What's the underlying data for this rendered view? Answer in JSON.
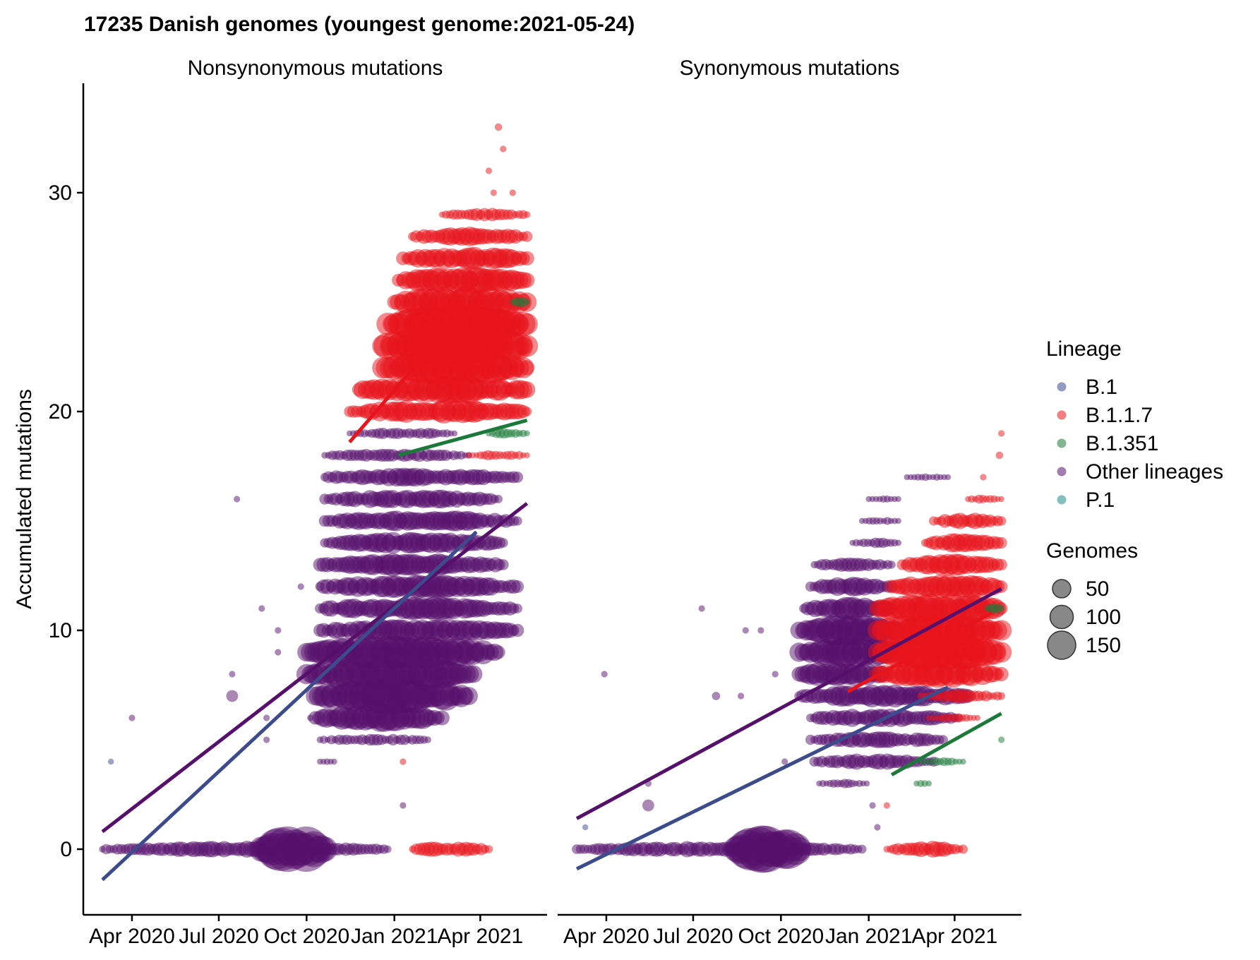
{
  "chart_data": {
    "type": "scatter",
    "title": "17235 Danish genomes (youngest genome:2021-05-24)",
    "ylabel": "Accumulated mutations",
    "ylim": [
      -3,
      35
    ],
    "y_ticks": [
      0,
      10,
      20,
      30
    ],
    "x_ticks": [
      "Apr 2020",
      "Jul 2020",
      "Oct 2020",
      "Jan 2021",
      "Apr 2021"
    ],
    "x_tick_dates": [
      "2020-04-01",
      "2020-07-01",
      "2020-10-01",
      "2021-01-01",
      "2021-04-01"
    ],
    "xlim": [
      "2020-02-10",
      "2021-06-10"
    ],
    "grid": false,
    "legend_position": "right",
    "lineage_legend": {
      "title": "Lineage",
      "items": [
        {
          "name": "B.1",
          "color": "#3b4b8c"
        },
        {
          "name": "B.1.1.7",
          "color": "#e8141b"
        },
        {
          "name": "B.1.351",
          "color": "#1b7a3a"
        },
        {
          "name": "Other lineages",
          "color": "#56106b"
        },
        {
          "name": "P.1",
          "color": "#1f8a8a"
        }
      ]
    },
    "size_legend": {
      "title": "Genomes",
      "items": [
        {
          "label": "50",
          "genomes": 50
        },
        {
          "label": "100",
          "genomes": 100
        },
        {
          "label": "150",
          "genomes": 150
        }
      ]
    },
    "panels": [
      {
        "name": "Nonsynonymous mutations",
        "trend_lines": [
          {
            "series": "Other lineages",
            "start": [
              "2020-03-01",
              0.8
            ],
            "end": [
              "2021-05-20",
              15.8
            ]
          },
          {
            "series": "B.1",
            "start": [
              "2020-03-01",
              -1.4
            ],
            "end": [
              "2021-03-28",
              14.5
            ]
          },
          {
            "series": "B.1.1.7",
            "start": [
              "2020-11-15",
              18.6
            ],
            "end": [
              "2021-02-20",
              23.5
            ]
          },
          {
            "series": "B.1.351",
            "start": [
              "2021-01-05",
              18.0
            ],
            "end": [
              "2021-05-20",
              19.6
            ]
          }
        ],
        "point_groups": [
          {
            "series": "Other lineages",
            "y": 0,
            "from": "2020-03-01",
            "to": "2020-12-25",
            "genomes": 15
          },
          {
            "series": "Other lineages",
            "y": 0,
            "from": "2020-08-15",
            "to": "2020-10-20",
            "genomes": 120
          },
          {
            "series": "B.1.1.7",
            "y": 0,
            "from": "2021-01-20",
            "to": "2021-04-10",
            "genomes": 15
          },
          {
            "series": "Other lineages",
            "y": 4,
            "from": "2020-10-15",
            "to": "2020-10-30",
            "genomes": 3
          },
          {
            "series": "Other lineages",
            "y": 5,
            "from": "2020-10-15",
            "to": "2021-02-05",
            "genomes": 8
          },
          {
            "series": "Other lineages",
            "y": 6,
            "from": "2020-10-10",
            "to": "2021-02-20",
            "genomes": 40
          },
          {
            "series": "Other lineages",
            "y": 7,
            "from": "2020-10-10",
            "to": "2021-03-20",
            "genomes": 70
          },
          {
            "series": "Other lineages",
            "y": 8,
            "from": "2020-10-01",
            "to": "2021-03-25",
            "genomes": 60
          },
          {
            "series": "Other lineages",
            "y": 9,
            "from": "2020-10-01",
            "to": "2021-04-20",
            "genomes": 60
          },
          {
            "series": "Other lineages",
            "y": 10,
            "from": "2020-10-15",
            "to": "2021-05-10",
            "genomes": 30
          },
          {
            "series": "Other lineages",
            "y": 11,
            "from": "2020-10-15",
            "to": "2021-05-10",
            "genomes": 30
          },
          {
            "series": "Other lineages",
            "y": 12,
            "from": "2020-10-15",
            "to": "2021-05-10",
            "genomes": 30
          },
          {
            "series": "Other lineages",
            "y": 13,
            "from": "2020-10-15",
            "to": "2021-04-25",
            "genomes": 30
          },
          {
            "series": "Other lineages",
            "y": 14,
            "from": "2020-10-20",
            "to": "2021-04-25",
            "genomes": 25
          },
          {
            "series": "Other lineages",
            "y": 15,
            "from": "2020-10-20",
            "to": "2021-05-10",
            "genomes": 25
          },
          {
            "series": "Other lineages",
            "y": 16,
            "from": "2020-10-20",
            "to": "2021-04-20",
            "genomes": 20
          },
          {
            "series": "Other lineages",
            "y": 17,
            "from": "2020-10-20",
            "to": "2021-05-10",
            "genomes": 20
          },
          {
            "series": "Other lineages",
            "y": 18,
            "from": "2020-10-20",
            "to": "2021-03-20",
            "genomes": 10
          },
          {
            "series": "Other lineages",
            "y": 19,
            "from": "2020-11-15",
            "to": "2021-03-05",
            "genomes": 8
          },
          {
            "series": "B.1.1.7",
            "y": 20,
            "from": "2020-11-15",
            "to": "2021-05-20",
            "genomes": 30
          },
          {
            "series": "B.1.1.7",
            "y": 21,
            "from": "2020-11-25",
            "to": "2021-05-20",
            "genomes": 45
          },
          {
            "series": "B.1.1.7",
            "y": 22,
            "from": "2020-12-20",
            "to": "2021-05-20",
            "genomes": 70
          },
          {
            "series": "B.1.1.7",
            "y": 23,
            "from": "2020-12-20",
            "to": "2021-05-20",
            "genomes": 90
          },
          {
            "series": "B.1.1.7",
            "y": 24,
            "from": "2020-12-25",
            "to": "2021-05-20",
            "genomes": 80
          },
          {
            "series": "B.1.1.7",
            "y": 25,
            "from": "2021-01-01",
            "to": "2021-05-20",
            "genomes": 55
          },
          {
            "series": "B.1.1.7",
            "y": 26,
            "from": "2021-01-05",
            "to": "2021-05-20",
            "genomes": 40
          },
          {
            "series": "B.1.1.7",
            "y": 27,
            "from": "2021-01-10",
            "to": "2021-05-20",
            "genomes": 30
          },
          {
            "series": "B.1.1.7",
            "y": 28,
            "from": "2021-01-20",
            "to": "2021-05-20",
            "genomes": 20
          },
          {
            "series": "B.1.1.7",
            "y": 29,
            "from": "2021-02-20",
            "to": "2021-05-20",
            "genomes": 10
          },
          {
            "series": "B.1.1.7",
            "y": 18,
            "from": "2021-03-20",
            "to": "2021-05-20",
            "genomes": 6
          },
          {
            "series": "B.1.351",
            "y": 19,
            "from": "2021-04-10",
            "to": "2021-05-20",
            "genomes": 6
          },
          {
            "series": "B.1.351",
            "y": 25,
            "from": "2021-05-05",
            "to": "2021-05-20",
            "genomes": 6
          }
        ],
        "points": [
          {
            "series": "B.1",
            "date": "2020-03-10",
            "y": 4,
            "genomes": 2
          },
          {
            "series": "Other lineages",
            "date": "2020-04-01",
            "y": 6,
            "genomes": 3
          },
          {
            "series": "Other lineages",
            "date": "2020-07-20",
            "y": 16,
            "genomes": 3
          },
          {
            "series": "Other lineages",
            "date": "2020-07-15",
            "y": 8,
            "genomes": 3
          },
          {
            "series": "Other lineages",
            "date": "2020-07-15",
            "y": 7,
            "genomes": 10
          },
          {
            "series": "Other lineages",
            "date": "2020-08-15",
            "y": 11,
            "genomes": 3
          },
          {
            "series": "Other lineages",
            "date": "2020-09-01",
            "y": 10,
            "genomes": 3
          },
          {
            "series": "Other lineages",
            "date": "2020-09-01",
            "y": 9,
            "genomes": 3
          },
          {
            "series": "Other lineages",
            "date": "2020-09-25",
            "y": 12,
            "genomes": 3
          },
          {
            "series": "Other lineages",
            "date": "2020-08-20",
            "y": 5,
            "genomes": 3
          },
          {
            "series": "Other lineages",
            "date": "2020-08-20",
            "y": 6,
            "genomes": 3
          },
          {
            "series": "Other lineages",
            "date": "2020-10-05",
            "y": 6,
            "genomes": 3
          },
          {
            "series": "Other lineages",
            "date": "2021-01-10",
            "y": 2,
            "genomes": 3
          },
          {
            "series": "B.1.1.7",
            "date": "2021-01-10",
            "y": 4,
            "genomes": 3
          },
          {
            "series": "B.1.1.7",
            "date": "2021-04-20",
            "y": 33,
            "genomes": 4
          },
          {
            "series": "B.1.1.7",
            "date": "2021-04-25",
            "y": 32,
            "genomes": 3
          },
          {
            "series": "B.1.1.7",
            "date": "2021-04-10",
            "y": 31,
            "genomes": 3
          },
          {
            "series": "B.1.1.7",
            "date": "2021-04-15",
            "y": 30,
            "genomes": 3
          },
          {
            "series": "B.1.1.7",
            "date": "2021-05-05",
            "y": 30,
            "genomes": 3
          }
        ]
      },
      {
        "name": "Synonymous mutations",
        "trend_lines": [
          {
            "series": "Other lineages",
            "start": [
              "2020-03-01",
              1.4
            ],
            "end": [
              "2021-05-20",
              11.9
            ]
          },
          {
            "series": "B.1",
            "start": [
              "2020-03-01",
              -0.9
            ],
            "end": [
              "2021-03-25",
              7.4
            ]
          },
          {
            "series": "B.1.1.7",
            "start": [
              "2020-12-10",
              7.2
            ],
            "end": [
              "2021-05-10",
              10.8
            ]
          },
          {
            "series": "B.1.351",
            "start": [
              "2021-01-25",
              3.4
            ],
            "end": [
              "2021-05-20",
              6.2
            ]
          }
        ],
        "point_groups": [
          {
            "series": "Other lineages",
            "y": 0,
            "from": "2020-03-01",
            "to": "2020-12-25",
            "genomes": 15
          },
          {
            "series": "Other lineages",
            "y": 0,
            "from": "2020-08-15",
            "to": "2020-10-20",
            "genomes": 120
          },
          {
            "series": "B.1.1.7",
            "y": 0,
            "from": "2021-01-20",
            "to": "2021-04-10",
            "genomes": 15
          },
          {
            "series": "Other lineages",
            "y": 3,
            "from": "2020-11-10",
            "to": "2020-12-30",
            "genomes": 5
          },
          {
            "series": "Other lineages",
            "y": 4,
            "from": "2020-11-05",
            "to": "2021-03-10",
            "genomes": 15
          },
          {
            "series": "Other lineages",
            "y": 5,
            "from": "2020-11-01",
            "to": "2021-03-20",
            "genomes": 15
          },
          {
            "series": "Other lineages",
            "y": 6,
            "from": "2020-11-01",
            "to": "2021-04-05",
            "genomes": 20
          },
          {
            "series": "Other lineages",
            "y": 7,
            "from": "2020-10-20",
            "to": "2021-04-15",
            "genomes": 30
          },
          {
            "series": "Other lineages",
            "y": 8,
            "from": "2020-10-20",
            "to": "2021-01-15",
            "genomes": 40
          },
          {
            "series": "Other lineages",
            "y": 9,
            "from": "2020-10-20",
            "to": "2021-02-01",
            "genomes": 55
          },
          {
            "series": "Other lineages",
            "y": 10,
            "from": "2020-10-20",
            "to": "2021-02-01",
            "genomes": 50
          },
          {
            "series": "Other lineages",
            "y": 11,
            "from": "2020-10-25",
            "to": "2021-01-25",
            "genomes": 30
          },
          {
            "series": "Other lineages",
            "y": 12,
            "from": "2020-11-01",
            "to": "2021-01-25",
            "genomes": 20
          },
          {
            "series": "Other lineages",
            "y": 13,
            "from": "2020-11-05",
            "to": "2021-01-25",
            "genomes": 12
          },
          {
            "series": "Other lineages",
            "y": 14,
            "from": "2020-12-15",
            "to": "2021-02-01",
            "genomes": 6
          },
          {
            "series": "Other lineages",
            "y": 15,
            "from": "2020-12-25",
            "to": "2021-02-01",
            "genomes": 4
          },
          {
            "series": "Other lineages",
            "y": 16,
            "from": "2021-01-01",
            "to": "2021-02-01",
            "genomes": 3
          },
          {
            "series": "Other lineages",
            "y": 17,
            "from": "2021-02-10",
            "to": "2021-03-25",
            "genomes": 3
          },
          {
            "series": "B.1.1.7",
            "y": 8,
            "from": "2021-01-10",
            "to": "2021-05-20",
            "genomes": 40
          },
          {
            "series": "B.1.1.7",
            "y": 9,
            "from": "2021-01-10",
            "to": "2021-05-20",
            "genomes": 70
          },
          {
            "series": "B.1.1.7",
            "y": 10,
            "from": "2021-01-10",
            "to": "2021-05-20",
            "genomes": 65
          },
          {
            "series": "B.1.1.7",
            "y": 11,
            "from": "2021-01-10",
            "to": "2021-05-20",
            "genomes": 50
          },
          {
            "series": "B.1.1.7",
            "y": 12,
            "from": "2021-01-25",
            "to": "2021-05-20",
            "genomes": 35
          },
          {
            "series": "B.1.1.7",
            "y": 13,
            "from": "2021-02-05",
            "to": "2021-05-20",
            "genomes": 25
          },
          {
            "series": "B.1.1.7",
            "y": 14,
            "from": "2021-03-01",
            "to": "2021-05-20",
            "genomes": 20
          },
          {
            "series": "B.1.1.7",
            "y": 15,
            "from": "2021-03-10",
            "to": "2021-05-20",
            "genomes": 15
          },
          {
            "series": "B.1.1.7",
            "y": 16,
            "from": "2021-04-15",
            "to": "2021-05-20",
            "genomes": 5
          },
          {
            "series": "B.1.1.7",
            "y": 7,
            "from": "2021-02-25",
            "to": "2021-05-20",
            "genomes": 10
          },
          {
            "series": "B.1.1.7",
            "y": 6,
            "from": "2021-03-05",
            "to": "2021-04-25",
            "genomes": 5
          },
          {
            "series": "B.1.351",
            "y": 4,
            "from": "2021-02-25",
            "to": "2021-04-10",
            "genomes": 4
          },
          {
            "series": "B.1.351",
            "y": 3,
            "from": "2021-02-20",
            "to": "2021-03-05",
            "genomes": 3
          },
          {
            "series": "B.1.351",
            "y": 11,
            "from": "2021-05-05",
            "to": "2021-05-20",
            "genomes": 6
          }
        ],
        "points": [
          {
            "series": "B.1",
            "date": "2020-03-10",
            "y": 1,
            "genomes": 2
          },
          {
            "series": "Other lineages",
            "date": "2020-03-30",
            "y": 8,
            "genomes": 3
          },
          {
            "series": "Other lineages",
            "date": "2020-07-10",
            "y": 11,
            "genomes": 3
          },
          {
            "series": "Other lineages",
            "date": "2020-05-15",
            "y": 3,
            "genomes": 3
          },
          {
            "series": "Other lineages",
            "date": "2020-05-15",
            "y": 2,
            "genomes": 10
          },
          {
            "series": "Other lineages",
            "date": "2020-07-25",
            "y": 7,
            "genomes": 5
          },
          {
            "series": "Other lineages",
            "date": "2020-08-20",
            "y": 7,
            "genomes": 3
          },
          {
            "series": "Other lineages",
            "date": "2020-08-25",
            "y": 10,
            "genomes": 3
          },
          {
            "series": "Other lineages",
            "date": "2020-09-10",
            "y": 10,
            "genomes": 3
          },
          {
            "series": "Other lineages",
            "date": "2020-09-25",
            "y": 8,
            "genomes": 3
          },
          {
            "series": "Other lineages",
            "date": "2020-10-05",
            "y": 4,
            "genomes": 3
          },
          {
            "series": "Other lineages",
            "date": "2021-01-10",
            "y": 1,
            "genomes": 3
          },
          {
            "series": "Other lineages",
            "date": "2021-01-05",
            "y": 2,
            "genomes": 3
          },
          {
            "series": "B.1.1.7",
            "date": "2021-01-20",
            "y": 2,
            "genomes": 3
          },
          {
            "series": "B.1.1.7",
            "date": "2021-05-20",
            "y": 19,
            "genomes": 3
          },
          {
            "series": "B.1.1.7",
            "date": "2021-05-18",
            "y": 18,
            "genomes": 4
          },
          {
            "series": "B.1.1.7",
            "date": "2021-05-01",
            "y": 17,
            "genomes": 3
          },
          {
            "series": "B.1.351",
            "date": "2021-05-20",
            "y": 5,
            "genomes": 3
          }
        ]
      }
    ]
  }
}
